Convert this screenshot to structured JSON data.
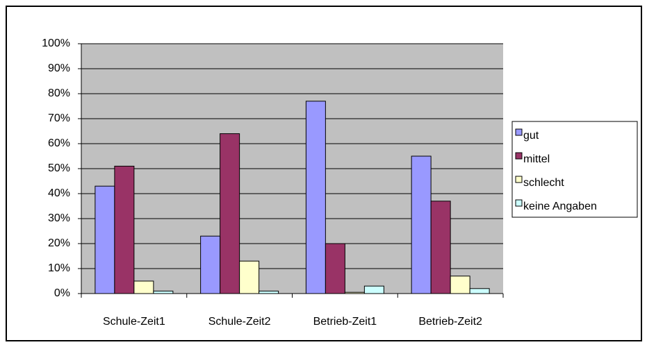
{
  "chart_data": {
    "type": "bar",
    "categories": [
      "Schule-Zeit1",
      "Schule-Zeit2",
      "Betrieb-Zeit1",
      "Betrieb-Zeit2"
    ],
    "series": [
      {
        "name": "gut",
        "color": "#9999ff",
        "values": [
          43,
          23,
          77,
          55
        ]
      },
      {
        "name": "mittel",
        "color": "#993366",
        "values": [
          51,
          64,
          20,
          37
        ]
      },
      {
        "name": "schlecht",
        "color": "#ffffcc",
        "values": [
          5,
          13,
          0.5,
          7
        ]
      },
      {
        "name": "keine Angaben",
        "color": "#ccffff",
        "values": [
          1,
          1,
          3,
          2
        ]
      }
    ],
    "ylim": [
      0,
      100
    ],
    "yticks": [
      {
        "value": 0,
        "label": "0%"
      },
      {
        "value": 10,
        "label": "10%"
      },
      {
        "value": 20,
        "label": "20%"
      },
      {
        "value": 30,
        "label": "30%"
      },
      {
        "value": 40,
        "label": "40%"
      },
      {
        "value": 50,
        "label": "50%"
      },
      {
        "value": 60,
        "label": "60%"
      },
      {
        "value": 70,
        "label": "70%"
      },
      {
        "value": 80,
        "label": "80%"
      },
      {
        "value": 90,
        "label": "90%"
      },
      {
        "value": 100,
        "label": "100%"
      }
    ],
    "grid": true,
    "plot_background": "#c0c0c0",
    "legend": "right"
  }
}
